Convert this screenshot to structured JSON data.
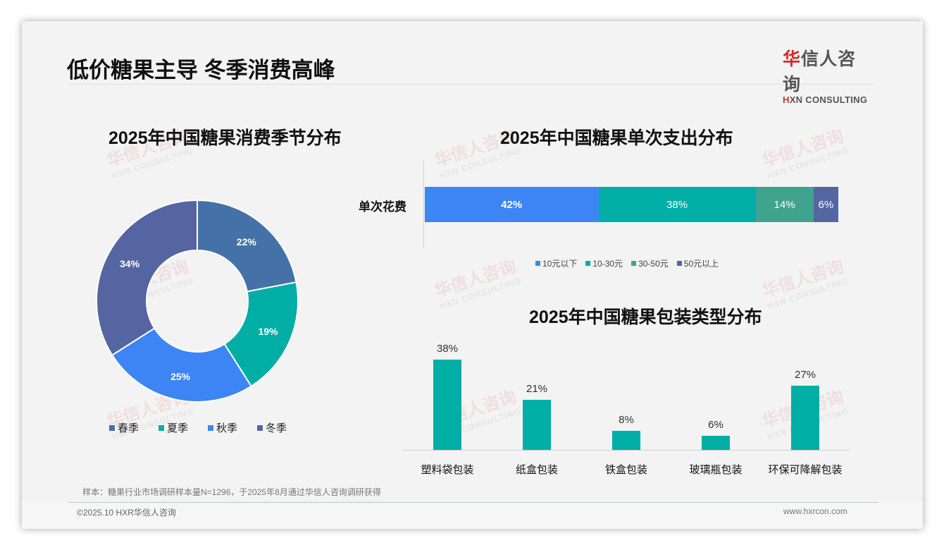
{
  "header": {
    "title": "低价糖果主导 冬季消费高峰",
    "logo": {
      "cn_first": "华",
      "cn_rest": "信人咨询",
      "en_first": "H",
      "en_rest": "XN CONSULTING"
    }
  },
  "watermark": {
    "cn": "华信人咨询",
    "en": "HXN CONSULTING"
  },
  "colors": {
    "spring": "#4472a8",
    "summer": "#00aea5",
    "autumn": "#3d85f5",
    "winter": "#5465a2",
    "teal_bar": "#00aea5",
    "seg_30_50": "#3fa38e"
  },
  "chart_data": [
    {
      "type": "pie",
      "variant": "donut",
      "title": "2025年中国糖果消费季节分布",
      "categories": [
        "春季",
        "夏季",
        "秋季",
        "冬季"
      ],
      "values": [
        22,
        19,
        25,
        34
      ],
      "labels": [
        "22%",
        "19%",
        "25%",
        "34%"
      ],
      "colors": [
        "#4472a8",
        "#00aea5",
        "#3d85f5",
        "#5465a2"
      ],
      "legend_position": "bottom"
    },
    {
      "type": "bar",
      "orientation": "horizontal",
      "stacked": true,
      "title": "2025年中国糖果单次支出分布",
      "categories": [
        "单次花费"
      ],
      "series": [
        {
          "name": "10元以下",
          "values": [
            42
          ],
          "label": "42%",
          "color": "#3d85f5"
        },
        {
          "name": "10-30元",
          "values": [
            38
          ],
          "label": "38%",
          "color": "#00aea5"
        },
        {
          "name": "30-50元",
          "values": [
            14
          ],
          "label": "14%",
          "color": "#3fa38e"
        },
        {
          "name": "50元以上",
          "values": [
            6
          ],
          "label": "6%",
          "color": "#5465a2"
        }
      ],
      "legend_position": "bottom",
      "xlim": [
        0,
        100
      ]
    },
    {
      "type": "bar",
      "title": "2025年中国糖果包装类型分布",
      "categories": [
        "塑料袋包装",
        "纸盒包装",
        "铁盒包装",
        "玻璃瓶包装",
        "环保可降解包装"
      ],
      "values": [
        38,
        21,
        8,
        6,
        27
      ],
      "labels": [
        "38%",
        "21%",
        "8%",
        "6%",
        "27%"
      ],
      "color": "#00aea5",
      "xlabel": "",
      "ylabel": "",
      "grid": false
    }
  ],
  "footer": {
    "note": "样本：糖果行业市场调研样本量N=1296，于2025年8月通过华信人咨询调研获得",
    "copyright": "©2025.10 HXR华信人咨询",
    "website": "www.hxrcon.com"
  }
}
